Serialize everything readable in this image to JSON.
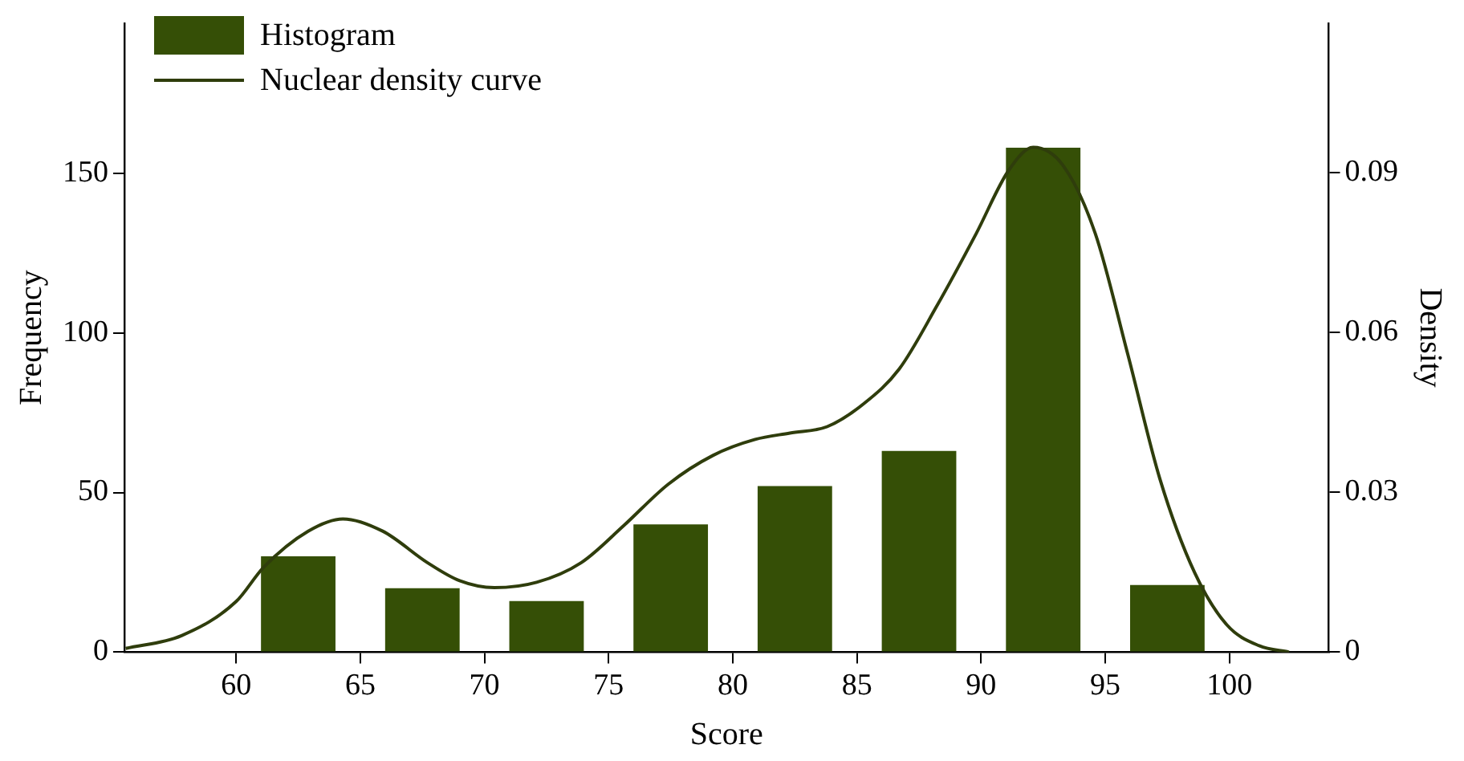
{
  "chart_data": {
    "type": "histogram",
    "xlabel": "Score",
    "ylabel": "Frequency",
    "y2label": "Density",
    "bins": [
      60,
      65,
      70,
      75,
      80,
      85,
      90,
      95,
      100
    ],
    "series": [
      {
        "name": "Histogram",
        "color": "#354f06",
        "values": [
          30,
          20,
          16,
          40,
          52,
          63,
          158,
          21
        ]
      },
      {
        "name": "Nuclear density curve",
        "type": "line",
        "axis": "y2",
        "color": "#2f3d0c",
        "x": [
          55.55,
          57.8,
          60,
          61.1,
          62.9,
          64.3,
          65.9,
          67.7,
          69.0,
          70.4,
          72.1,
          73.9,
          75.6,
          77.4,
          79.2,
          80.9,
          82.3,
          83.8,
          85.3,
          86.7,
          88.2,
          89.8,
          91.1,
          92.1,
          93.3,
          94.6,
          95.9,
          97.2,
          98.6,
          99.9,
          101.2,
          102.4
        ],
        "values": [
          0.0007,
          0.0031,
          0.0095,
          0.0159,
          0.0227,
          0.025,
          0.0227,
          0.0168,
          0.0134,
          0.0121,
          0.0131,
          0.0168,
          0.0237,
          0.0315,
          0.0369,
          0.0399,
          0.0411,
          0.0423,
          0.0467,
          0.0531,
          0.0648,
          0.0785,
          0.0903,
          0.0947,
          0.0913,
          0.0785,
          0.056,
          0.0325,
          0.0149,
          0.0051,
          0.0012,
          0
        ]
      }
    ],
    "xlim": [
      55.5,
      104
    ],
    "xticks": [
      60,
      65,
      70,
      75,
      80,
      85,
      90,
      95,
      100
    ],
    "ylim": [
      0,
      197
    ],
    "yticks": [
      0,
      50,
      100,
      150
    ],
    "y2lim": [
      0,
      0.118
    ],
    "y2ticks": [
      0,
      0.03,
      0.06,
      0.09
    ],
    "grid": false,
    "legend": "top left",
    "marker": "none",
    "line_style": "solid"
  }
}
